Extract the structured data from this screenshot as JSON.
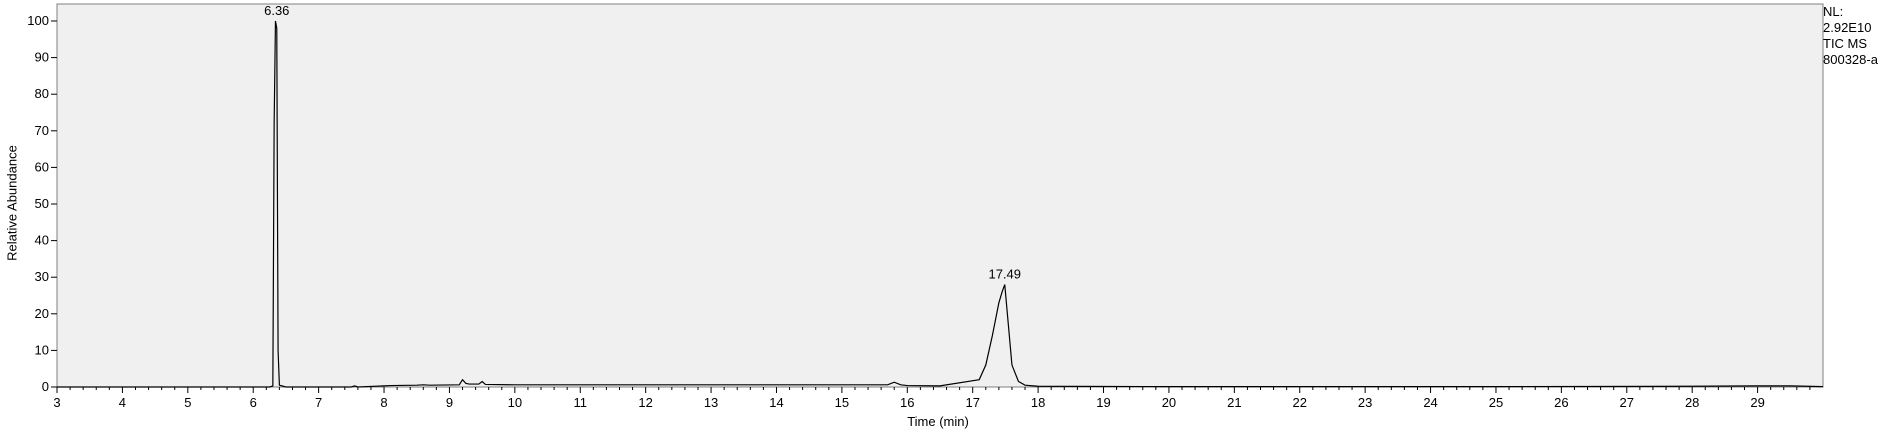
{
  "chart_data": {
    "type": "line",
    "xlabel": "Time (min)",
    "ylabel": "Relative Abundance",
    "xlim": [
      3,
      30
    ],
    "ylim": [
      0,
      100
    ],
    "x_ticks": [
      3,
      4,
      5,
      6,
      7,
      8,
      9,
      10,
      11,
      12,
      13,
      14,
      15,
      16,
      17,
      18,
      19,
      20,
      21,
      22,
      23,
      24,
      25,
      26,
      27,
      28,
      29
    ],
    "y_ticks": [
      0,
      10,
      20,
      30,
      40,
      50,
      60,
      70,
      80,
      90,
      100
    ],
    "grid": false,
    "peaks": [
      {
        "label": "6.36",
        "rt": 6.36,
        "height": 100
      },
      {
        "label": "17.49",
        "rt": 17.49,
        "height": 28
      }
    ],
    "series": [
      {
        "x": [
          3.0,
          6.25,
          6.3,
          6.32,
          6.34,
          6.36,
          6.38,
          6.4,
          6.5,
          7.5,
          7.55,
          7.6,
          8.1,
          8.5,
          8.6,
          8.7,
          9.15,
          9.2,
          9.25,
          9.3,
          9.45,
          9.5,
          9.55,
          10.0,
          15.7,
          15.8,
          15.9,
          16.0,
          16.5,
          17.1,
          17.2,
          17.3,
          17.4,
          17.45,
          17.49,
          17.53,
          17.6,
          17.7,
          17.8,
          18.0,
          20.0,
          25.0,
          28.0,
          29.0,
          29.5,
          30.0
        ],
        "y": [
          0.0,
          0.0,
          0.3,
          72,
          100,
          98,
          10,
          0.5,
          0.0,
          0.0,
          0.3,
          0.0,
          0.4,
          0.5,
          0.6,
          0.5,
          0.6,
          2.0,
          1.0,
          0.8,
          0.8,
          1.5,
          0.7,
          0.6,
          0.6,
          1.3,
          0.6,
          0.4,
          0.3,
          2.0,
          6.0,
          14.0,
          23.0,
          26.0,
          28.0,
          20.0,
          6.0,
          1.5,
          0.5,
          0.2,
          0.1,
          0.1,
          0.2,
          0.3,
          0.3,
          0.1
        ]
      }
    ]
  },
  "info": {
    "nl_label": "NL:",
    "nl_value": "2.92E10",
    "trace": "TIC  MS",
    "file": "800328-a"
  }
}
